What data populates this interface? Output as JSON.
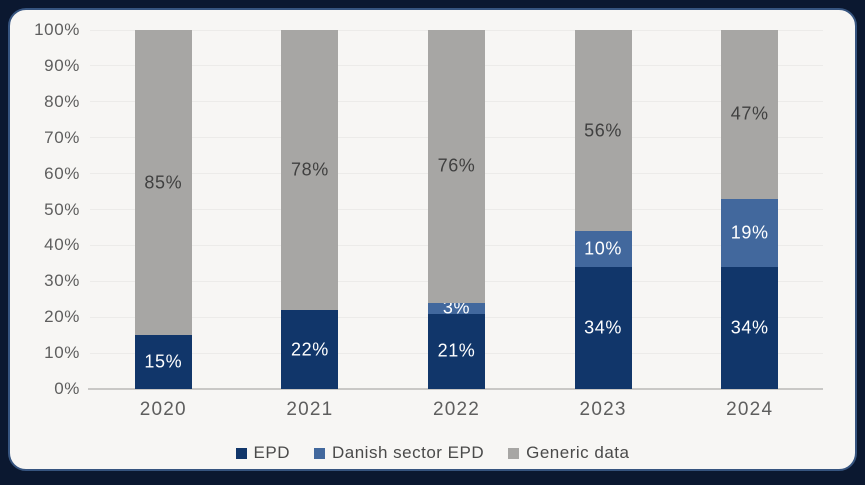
{
  "chart_data": {
    "type": "bar",
    "variant": "stacked-column-100",
    "categories": [
      "2020",
      "2021",
      "2022",
      "2023",
      "2024"
    ],
    "series": [
      {
        "name": "EPD",
        "color": "#11366A",
        "label_color": "#FFFFFF",
        "values": [
          15,
          22,
          21,
          34,
          34
        ]
      },
      {
        "name": "Danish sector EPD",
        "color": "#42689D",
        "label_color": "#FFFFFF",
        "values": [
          0,
          0,
          3,
          10,
          19
        ]
      },
      {
        "name": "Generic data",
        "color": "#A7A6A4",
        "label_color": "#404040",
        "values": [
          85,
          78,
          76,
          56,
          47
        ]
      }
    ],
    "y_axis": {
      "min": 0,
      "max": 100,
      "step": 10,
      "tick_labels": [
        "0%",
        "10%",
        "20%",
        "30%",
        "40%",
        "50%",
        "60%",
        "70%",
        "80%",
        "90%",
        "100%"
      ]
    },
    "data_labels": {
      "suffix": "%",
      "hide_zero": true
    },
    "grid": true,
    "legend_position": "bottom"
  },
  "style": {
    "frame_bg": "#0B1830",
    "card_bg": "#F7F6F4",
    "card_border": "#36547F",
    "gridline": "#ECEBE9",
    "axis_line": "#C9C8C6",
    "tick_text": "#5E5E5E",
    "legend_text": "#4A4A4A"
  }
}
